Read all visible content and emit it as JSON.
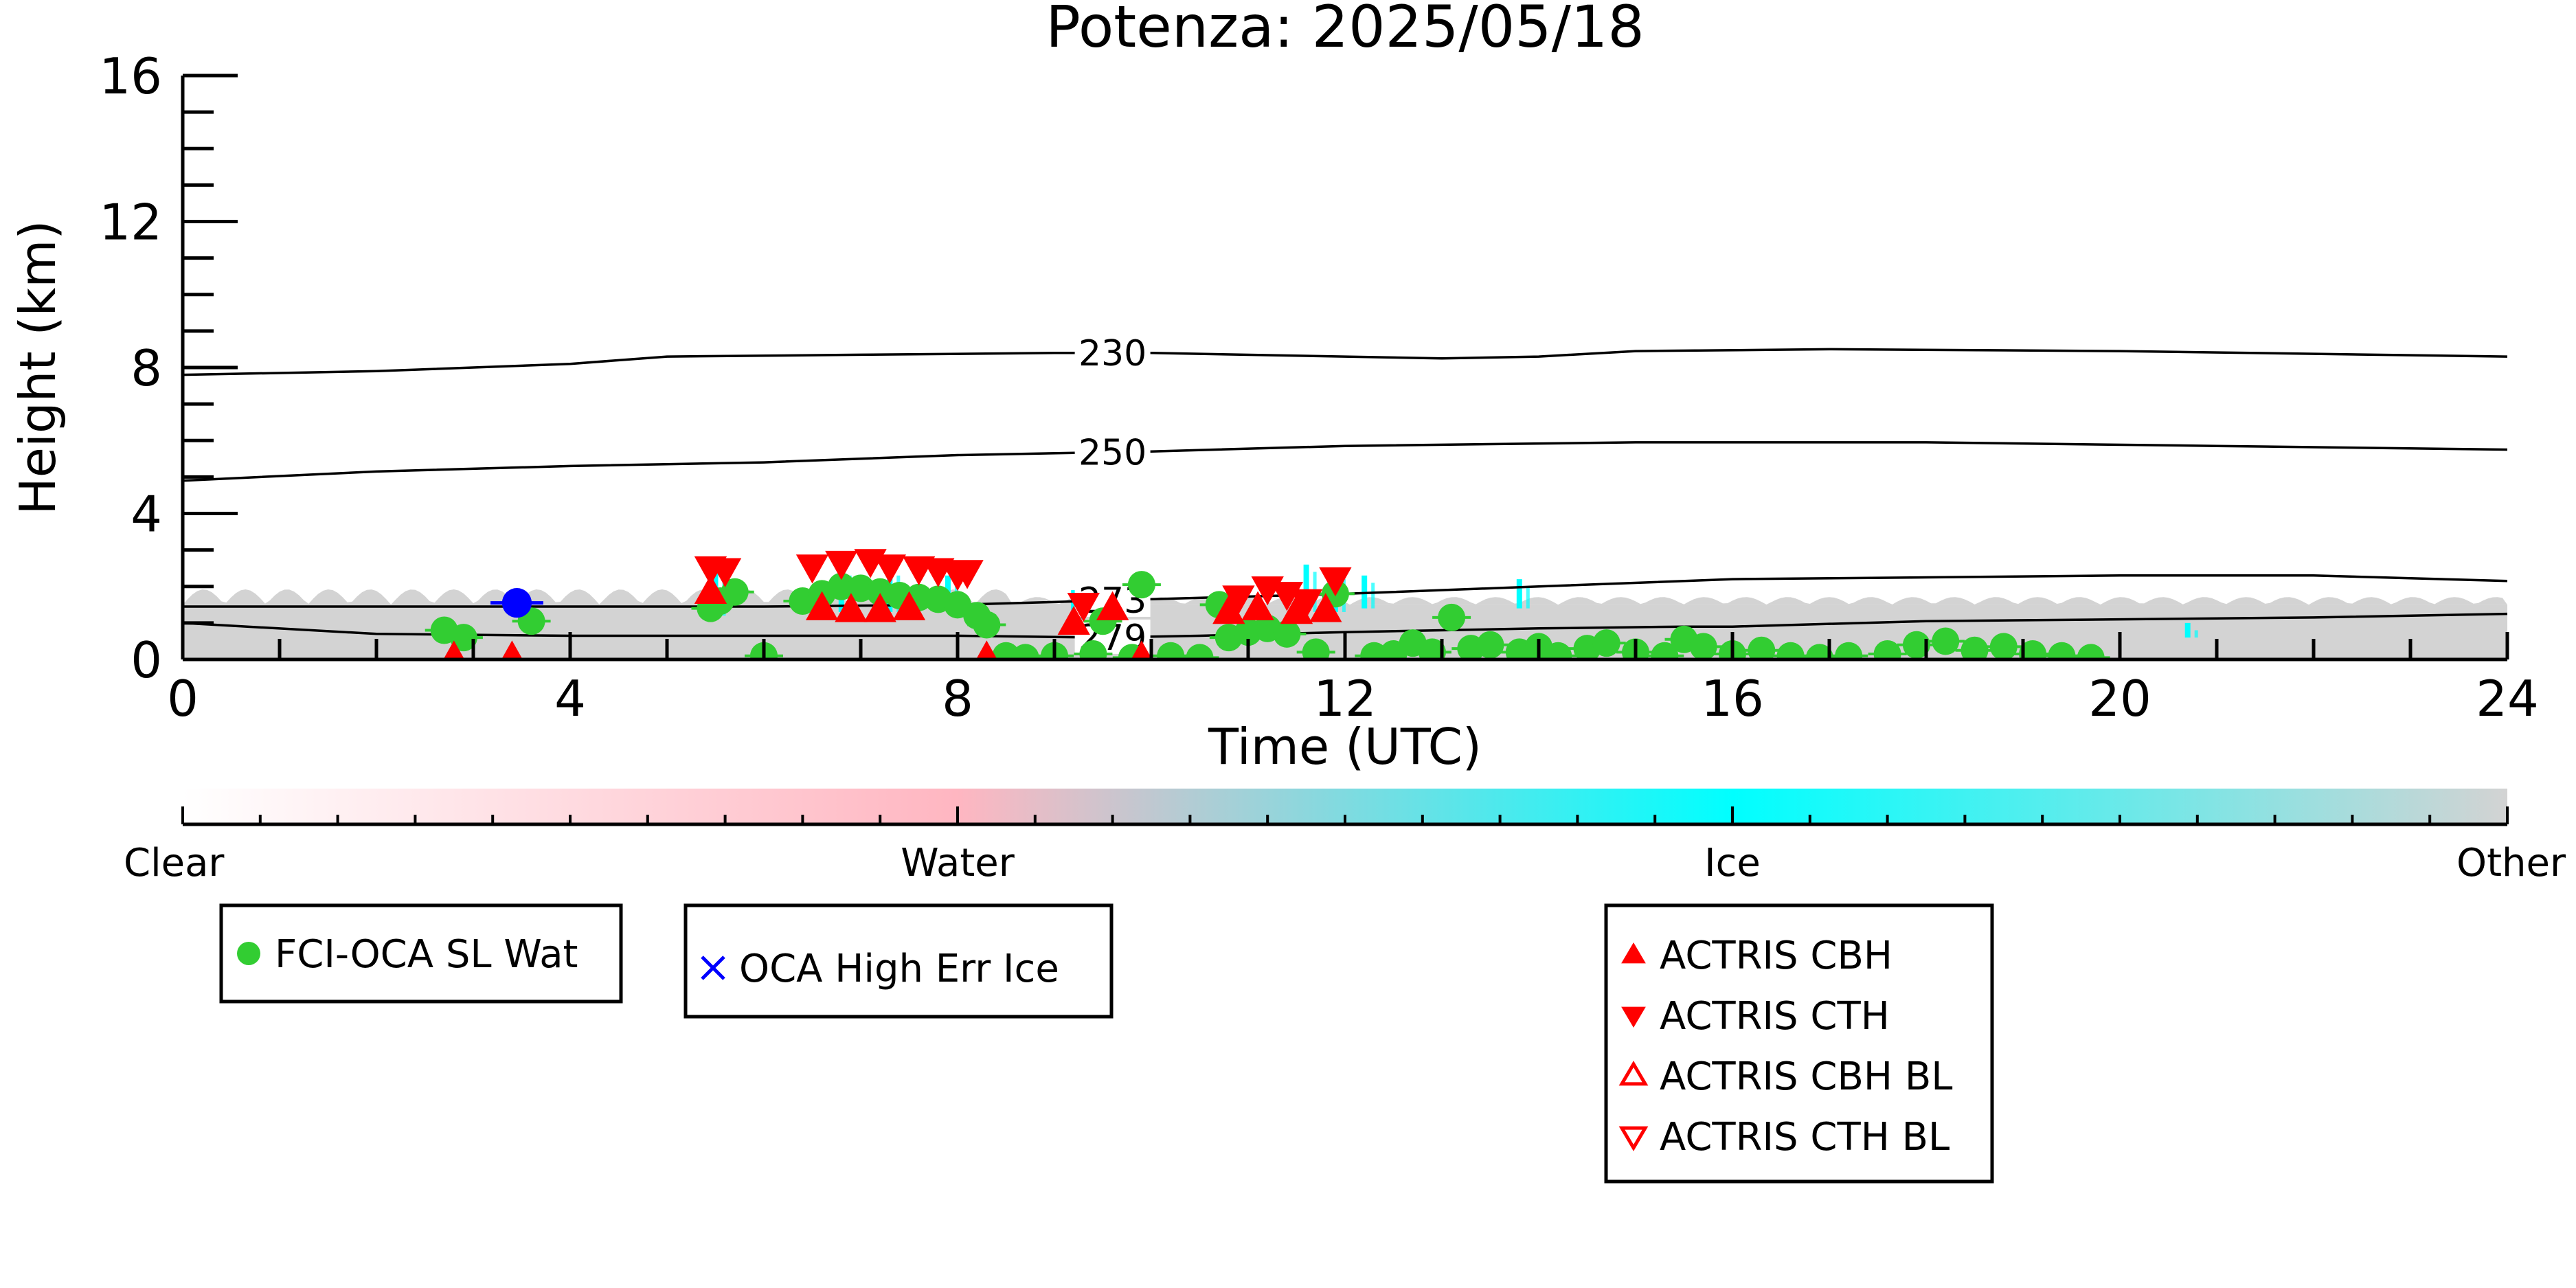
{
  "chart_data": {
    "type": "scatter",
    "title": "Potenza: 2025/05/18",
    "xlabel": "Time (UTC)",
    "ylabel": "Height (km)",
    "xlim": [
      0,
      24
    ],
    "ylim": [
      0,
      16
    ],
    "x_ticks": [
      "0",
      "4",
      "8",
      "12",
      "16",
      "20",
      "24"
    ],
    "y_ticks": [
      "0",
      "4",
      "8",
      "12",
      "16"
    ],
    "grid": false,
    "background_field": {
      "description_classes": [
        "Clear",
        "Water",
        "Ice",
        "Other"
      ],
      "colors": {
        "Clear": "#ffffff",
        "Water": "#ffb6c1",
        "Ice": "#00ffff",
        "Other": "#d3d3d3"
      },
      "base_top_km": 1.5,
      "ice_streaks": [
        {
          "x": 5.5,
          "y0": 1.2,
          "y1": 2.6
        },
        {
          "x": 6.8,
          "y0": 1.3,
          "y1": 2.5
        },
        {
          "x": 7.3,
          "y0": 1.3,
          "y1": 2.5
        },
        {
          "x": 7.9,
          "y0": 1.4,
          "y1": 2.3
        },
        {
          "x": 9.2,
          "y0": 1.0,
          "y1": 1.9
        },
        {
          "x": 11.6,
          "y0": 1.3,
          "y1": 2.6
        },
        {
          "x": 11.9,
          "y0": 1.3,
          "y1": 2.4
        },
        {
          "x": 12.2,
          "y0": 1.4,
          "y1": 2.3
        },
        {
          "x": 13.8,
          "y0": 1.4,
          "y1": 2.2
        },
        {
          "x": 20.7,
          "y0": 0.6,
          "y1": 1.0
        }
      ]
    },
    "isotherms": [
      {
        "label": "230",
        "points": [
          [
            0,
            7.8
          ],
          [
            2,
            7.9
          ],
          [
            4,
            8.1
          ],
          [
            5,
            8.3
          ],
          [
            7,
            8.35
          ],
          [
            9,
            8.4
          ],
          [
            10,
            8.4
          ],
          [
            12,
            8.3
          ],
          [
            13,
            8.25
          ],
          [
            14,
            8.3
          ],
          [
            15,
            8.45
          ],
          [
            17,
            8.5
          ],
          [
            20,
            8.45
          ],
          [
            24,
            8.3
          ]
        ],
        "label_x": 9.6
      },
      {
        "label": "250",
        "points": [
          [
            0,
            4.9
          ],
          [
            2,
            5.15
          ],
          [
            4,
            5.3
          ],
          [
            6,
            5.4
          ],
          [
            8,
            5.6
          ],
          [
            10,
            5.7
          ],
          [
            12,
            5.85
          ],
          [
            15,
            5.95
          ],
          [
            18,
            5.95
          ],
          [
            21,
            5.85
          ],
          [
            24,
            5.75
          ]
        ],
        "label_x": 9.6
      },
      {
        "label": "273",
        "points": [
          [
            0,
            1.45
          ],
          [
            3,
            1.45
          ],
          [
            6,
            1.45
          ],
          [
            8,
            1.5
          ],
          [
            10,
            1.65
          ],
          [
            12,
            1.8
          ],
          [
            14,
            2.0
          ],
          [
            16,
            2.2
          ],
          [
            18,
            2.25
          ],
          [
            20,
            2.3
          ],
          [
            22,
            2.3
          ],
          [
            24,
            2.15
          ]
        ],
        "label_x": 9.6
      },
      {
        "label": "279",
        "points": [
          [
            0,
            1.0
          ],
          [
            2,
            0.7
          ],
          [
            4,
            0.65
          ],
          [
            6,
            0.65
          ],
          [
            8,
            0.65
          ],
          [
            9.5,
            0.6
          ],
          [
            10.5,
            0.65
          ],
          [
            12,
            0.75
          ],
          [
            14,
            0.85
          ],
          [
            15.5,
            0.9
          ],
          [
            16,
            0.9
          ],
          [
            18,
            1.05
          ],
          [
            20,
            1.1
          ],
          [
            22,
            1.15
          ],
          [
            24,
            1.25
          ]
        ],
        "label_x": 9.6
      }
    ],
    "series": [
      {
        "name": "FCI-OCA SL Wat",
        "marker": "circle",
        "color": "#32cd32",
        "points": [
          [
            2.7,
            0.8
          ],
          [
            2.9,
            0.6
          ],
          [
            3.6,
            1.05
          ],
          [
            5.45,
            1.4
          ],
          [
            5.55,
            1.6
          ],
          [
            5.7,
            1.85
          ],
          [
            6.0,
            0.1
          ],
          [
            6.4,
            1.6
          ],
          [
            6.6,
            1.8
          ],
          [
            6.8,
            2.0
          ],
          [
            7.0,
            1.95
          ],
          [
            7.2,
            1.85
          ],
          [
            7.4,
            1.75
          ],
          [
            7.6,
            1.7
          ],
          [
            7.8,
            1.65
          ],
          [
            8.0,
            1.5
          ],
          [
            8.2,
            1.2
          ],
          [
            8.3,
            0.95
          ],
          [
            8.5,
            0.1
          ],
          [
            8.7,
            0.05
          ],
          [
            9.0,
            0.1
          ],
          [
            9.4,
            0.15
          ],
          [
            9.5,
            1.05
          ],
          [
            9.8,
            0.05
          ],
          [
            9.9,
            2.05
          ],
          [
            10.2,
            0.1
          ],
          [
            10.5,
            0.05
          ],
          [
            10.7,
            1.5
          ],
          [
            10.8,
            0.6
          ],
          [
            11.0,
            0.75
          ],
          [
            11.2,
            0.85
          ],
          [
            11.4,
            0.7
          ],
          [
            11.7,
            0.2
          ],
          [
            11.9,
            1.8
          ],
          [
            12.3,
            0.1
          ],
          [
            12.5,
            0.15
          ],
          [
            12.7,
            0.45
          ],
          [
            12.9,
            0.2
          ],
          [
            13.1,
            1.15
          ],
          [
            13.3,
            0.3
          ],
          [
            13.5,
            0.4
          ],
          [
            13.8,
            0.2
          ],
          [
            14.0,
            0.35
          ],
          [
            14.2,
            0.1
          ],
          [
            14.5,
            0.3
          ],
          [
            14.7,
            0.45
          ],
          [
            15.0,
            0.2
          ],
          [
            15.3,
            0.1
          ],
          [
            15.5,
            0.55
          ],
          [
            15.7,
            0.35
          ],
          [
            16.0,
            0.15
          ],
          [
            16.3,
            0.25
          ],
          [
            16.6,
            0.1
          ],
          [
            16.9,
            0.05
          ],
          [
            17.2,
            0.1
          ],
          [
            17.6,
            0.15
          ],
          [
            17.9,
            0.4
          ],
          [
            18.2,
            0.5
          ],
          [
            18.5,
            0.25
          ],
          [
            18.8,
            0.35
          ],
          [
            19.1,
            0.15
          ],
          [
            19.4,
            0.1
          ],
          [
            19.7,
            0.05
          ]
        ]
      },
      {
        "name": "OCA High Err Ice",
        "marker": "x",
        "color": "#0000ff",
        "points": [
          [
            3.45,
            1.55
          ]
        ]
      },
      {
        "name": "ACTRIS CBH",
        "marker": "triangle-up",
        "color": "#ff0000",
        "points": [
          [
            5.45,
            1.85
          ],
          [
            6.6,
            1.4
          ],
          [
            6.9,
            1.35
          ],
          [
            7.2,
            1.35
          ],
          [
            7.5,
            1.4
          ],
          [
            9.2,
            1.0
          ],
          [
            10.8,
            1.3
          ],
          [
            11.1,
            1.4
          ],
          [
            11.5,
            1.3
          ],
          [
            11.8,
            1.35
          ],
          [
            9.6,
            1.4
          ],
          [
            2.8,
            0.05
          ],
          [
            3.4,
            0.05
          ],
          [
            8.3,
            0.05
          ],
          [
            9.9,
            0.05
          ]
        ]
      },
      {
        "name": "ACTRIS CTH",
        "marker": "triangle-down",
        "color": "#ff0000",
        "points": [
          [
            5.45,
            2.5
          ],
          [
            5.6,
            2.45
          ],
          [
            6.5,
            2.55
          ],
          [
            6.8,
            2.65
          ],
          [
            7.1,
            2.7
          ],
          [
            7.3,
            2.55
          ],
          [
            7.6,
            2.5
          ],
          [
            7.8,
            2.45
          ],
          [
            8.0,
            2.35
          ],
          [
            8.1,
            2.4
          ],
          [
            9.3,
            1.5
          ],
          [
            10.9,
            1.7
          ],
          [
            11.2,
            1.95
          ],
          [
            11.4,
            1.8
          ],
          [
            11.6,
            1.6
          ],
          [
            11.9,
            2.2
          ]
        ]
      },
      {
        "name": "ACTRIS CBH BL",
        "marker": "triangle-up-open",
        "color": "#ff0000",
        "points": []
      },
      {
        "name": "ACTRIS CTH BL",
        "marker": "triangle-down-open",
        "color": "#ff0000",
        "points": []
      }
    ],
    "colorbar": {
      "labels": [
        "Clear",
        "Water",
        "Ice",
        "Other"
      ],
      "stops": [
        {
          "pos": 0.0,
          "color": "#ffffff"
        },
        {
          "pos": 0.333,
          "color": "#ffb6c1"
        },
        {
          "pos": 0.667,
          "color": "#00ffff"
        },
        {
          "pos": 1.0,
          "color": "#d3d3d3"
        }
      ]
    },
    "legends": [
      {
        "entries": [
          "FCI-OCA SL Wat"
        ]
      },
      {
        "entries": [
          "OCA High Err Ice"
        ]
      },
      {
        "entries": [
          "ACTRIS CBH",
          "ACTRIS CTH",
          "ACTRIS CBH BL",
          "ACTRIS CTH BL"
        ]
      }
    ]
  }
}
